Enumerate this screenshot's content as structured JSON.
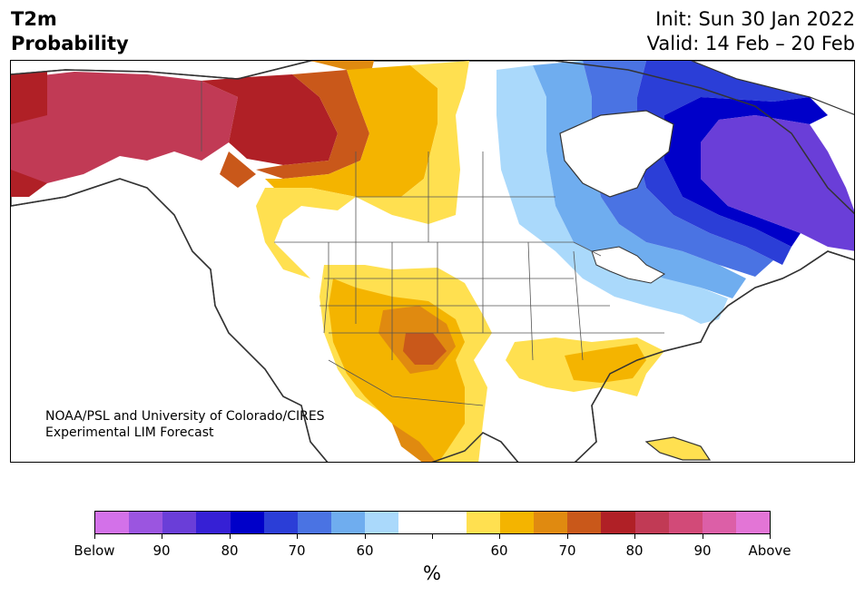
{
  "title": {
    "left_line1": "T2m",
    "left_line2": "Probability",
    "init": "Init: Sun 30 Jan 2022",
    "valid": "Valid: 14 Feb – 20 Feb"
  },
  "map": {
    "credit_line1": "NOAA/PSL and University of Colorado/CIRES",
    "credit_line2": "Experimental LIM Forecast",
    "colors": {
      "below_60": "#aad9fb",
      "below_70": "#6fadef",
      "below_75": "#4a73e3",
      "below_80": "#2b3ed7",
      "below_85": "#0000c9",
      "below_90": "#3620d5",
      "below_95": "#6a3ed8",
      "above_60": "#ffe050",
      "above_65": "#f4b400",
      "above_70": "#e08a10",
      "above_75": "#c9581a",
      "above_80": "#b02026",
      "above_85": "#c13a55",
      "land": "#ffffff",
      "coast": "#333333"
    }
  },
  "colorbar": {
    "colors": [
      "#d371e9",
      "#9b55e0",
      "#6a3ed8",
      "#3620d5",
      "#0000c9",
      "#2b3ed7",
      "#4a73e3",
      "#6fadef",
      "#aad9fb",
      "#ffffff",
      "#ffffff",
      "#ffe050",
      "#f4b400",
      "#e08a10",
      "#c9581a",
      "#b02026",
      "#c13a55",
      "#d24a78",
      "#dc5fa7",
      "#e375d6"
    ],
    "tick_labels": [
      "Below",
      "90",
      "80",
      "70",
      "60",
      "",
      "60",
      "70",
      "80",
      "90",
      "Above"
    ],
    "unit": "%"
  }
}
